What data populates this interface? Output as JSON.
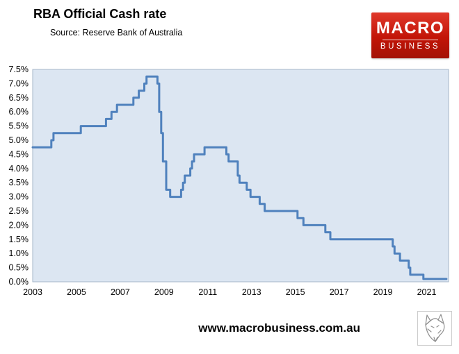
{
  "header": {
    "title": "RBA Official Cash rate",
    "source": "Source: Reserve Bank of Australia"
  },
  "logo": {
    "line1": "MACRO",
    "line2": "BUSINESS",
    "bg_color": "#c21407"
  },
  "footer": {
    "url": "www.macrobusiness.com.au"
  },
  "chart_data": {
    "type": "line",
    "title": "RBA Official Cash rate",
    "source": "Source: Reserve Bank of Australia",
    "xlabel": "",
    "ylabel": "",
    "xlim": [
      2003,
      2022
    ],
    "ylim": [
      0,
      7.5
    ],
    "grid": false,
    "legend": false,
    "step": true,
    "line_color": "#4f81bd",
    "plot_bg": "#dce6f2",
    "plot_border": "#a6b6c8",
    "x_ticks": [
      2003,
      2005,
      2007,
      2009,
      2011,
      2013,
      2015,
      2017,
      2019,
      2021
    ],
    "y_ticks": [
      {
        "value": 0.0,
        "label": "0.0%"
      },
      {
        "value": 0.5,
        "label": "0.5%"
      },
      {
        "value": 1.0,
        "label": "1.0%"
      },
      {
        "value": 1.5,
        "label": "1.5%"
      },
      {
        "value": 2.0,
        "label": "2.0%"
      },
      {
        "value": 2.5,
        "label": "2.5%"
      },
      {
        "value": 3.0,
        "label": "3.0%"
      },
      {
        "value": 3.5,
        "label": "3.5%"
      },
      {
        "value": 4.0,
        "label": "4.0%"
      },
      {
        "value": 4.5,
        "label": "4.5%"
      },
      {
        "value": 5.0,
        "label": "5.0%"
      },
      {
        "value": 5.5,
        "label": "5.5%"
      },
      {
        "value": 6.0,
        "label": "6.0%"
      },
      {
        "value": 6.5,
        "label": "6.5%"
      },
      {
        "value": 7.0,
        "label": "7.0%"
      },
      {
        "value": 7.5,
        "label": "7.5%"
      }
    ],
    "series": [
      {
        "name": "RBA official cash rate (%)",
        "points": [
          [
            2003.0,
            4.75
          ],
          [
            2003.85,
            5.0
          ],
          [
            2003.95,
            5.25
          ],
          [
            2005.2,
            5.5
          ],
          [
            2006.35,
            5.75
          ],
          [
            2006.6,
            6.0
          ],
          [
            2006.85,
            6.25
          ],
          [
            2007.6,
            6.5
          ],
          [
            2007.85,
            6.75
          ],
          [
            2008.1,
            7.0
          ],
          [
            2008.2,
            7.25
          ],
          [
            2008.7,
            7.0
          ],
          [
            2008.78,
            6.0
          ],
          [
            2008.87,
            5.25
          ],
          [
            2008.95,
            4.25
          ],
          [
            2009.1,
            3.25
          ],
          [
            2009.28,
            3.0
          ],
          [
            2009.78,
            3.25
          ],
          [
            2009.87,
            3.5
          ],
          [
            2009.95,
            3.75
          ],
          [
            2010.2,
            4.0
          ],
          [
            2010.28,
            4.25
          ],
          [
            2010.37,
            4.5
          ],
          [
            2010.85,
            4.75
          ],
          [
            2011.85,
            4.5
          ],
          [
            2011.95,
            4.25
          ],
          [
            2012.37,
            3.75
          ],
          [
            2012.45,
            3.5
          ],
          [
            2012.78,
            3.25
          ],
          [
            2012.95,
            3.0
          ],
          [
            2013.37,
            2.75
          ],
          [
            2013.6,
            2.5
          ],
          [
            2015.1,
            2.25
          ],
          [
            2015.37,
            2.0
          ],
          [
            2016.37,
            1.75
          ],
          [
            2016.6,
            1.5
          ],
          [
            2019.45,
            1.25
          ],
          [
            2019.53,
            1.0
          ],
          [
            2019.78,
            0.75
          ],
          [
            2020.18,
            0.5
          ],
          [
            2020.25,
            0.25
          ],
          [
            2020.85,
            0.1
          ],
          [
            2021.9,
            0.1
          ]
        ]
      }
    ]
  }
}
